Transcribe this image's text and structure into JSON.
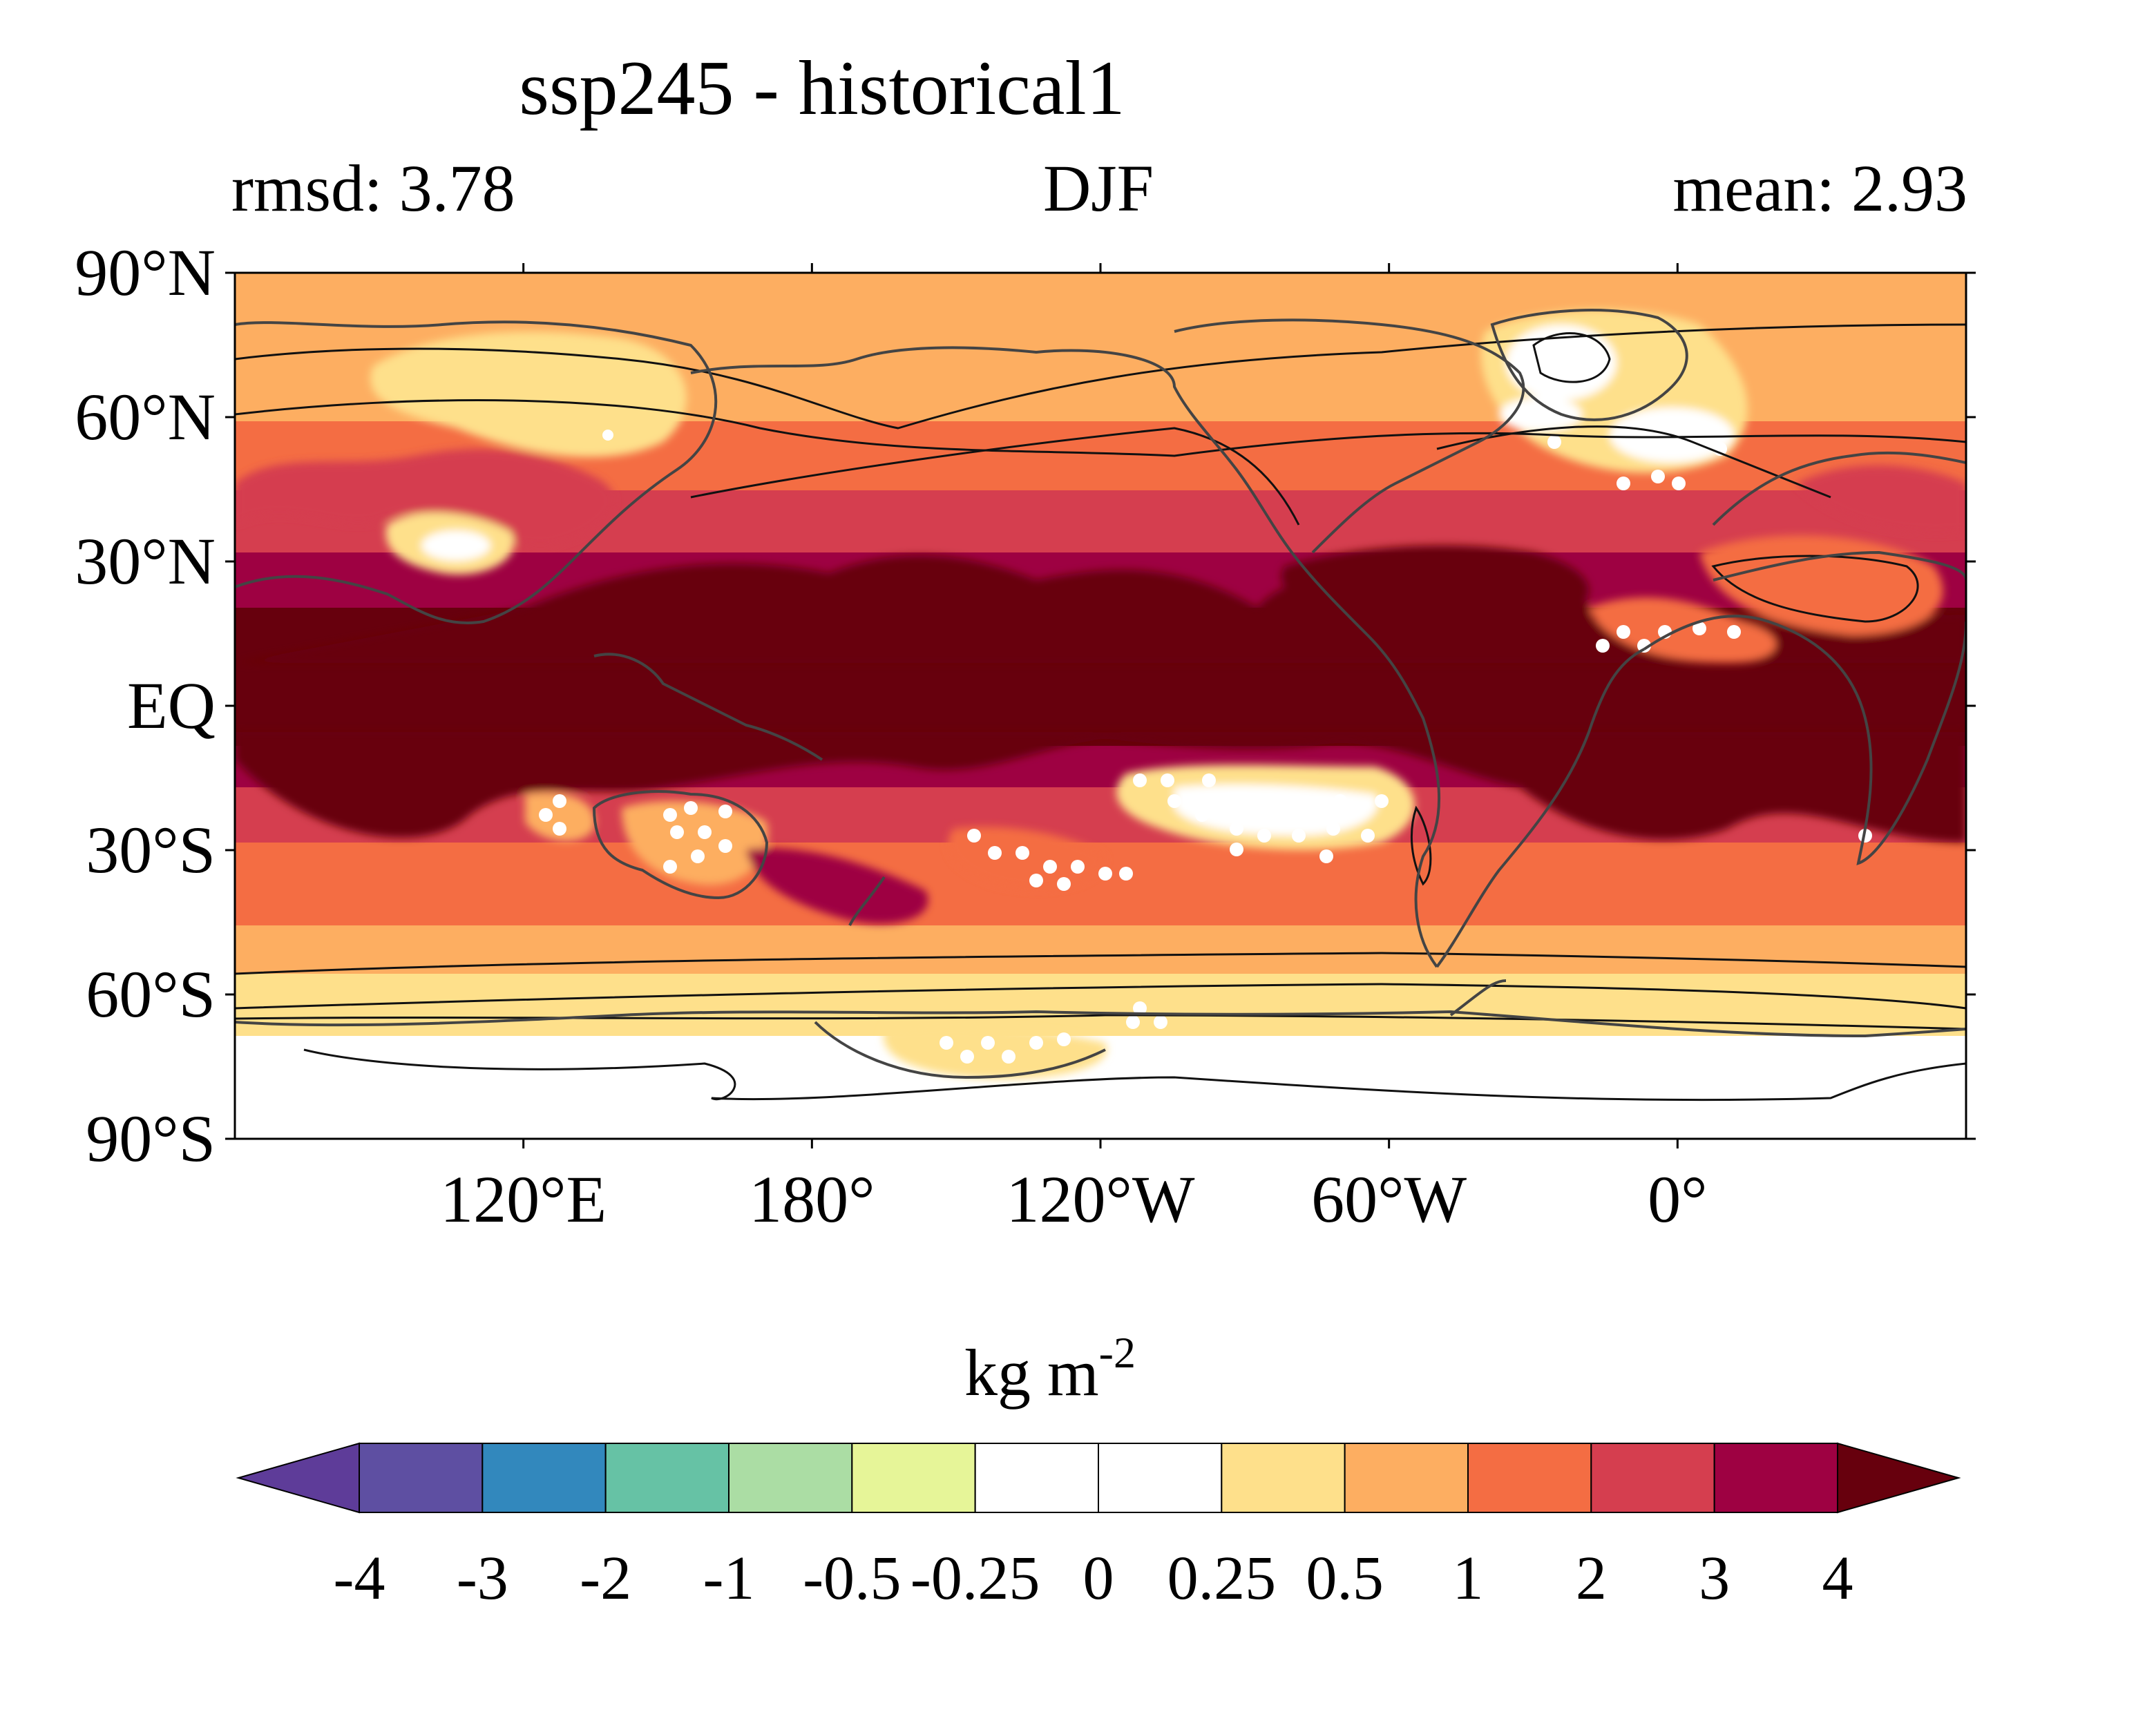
{
  "title": "ssp245 - historical1",
  "subtitle_left": "rmsd: 3.78",
  "subtitle_center": "DJF",
  "subtitle_right": "mean: 2.93",
  "map": {
    "lon_range": [
      60,
      420
    ],
    "lat_range": [
      -90,
      90
    ],
    "lat_ticks": [
      {
        "value": 90,
        "label": "90°N"
      },
      {
        "value": 60,
        "label": "60°N"
      },
      {
        "value": 30,
        "label": "30°N"
      },
      {
        "value": 0,
        "label": "EQ"
      },
      {
        "value": -30,
        "label": "30°S"
      },
      {
        "value": -60,
        "label": "60°S"
      },
      {
        "value": -90,
        "label": "90°S"
      }
    ],
    "lon_ticks": [
      {
        "value": 120,
        "label": "120°E"
      },
      {
        "value": 180,
        "label": "180°"
      },
      {
        "value": 240,
        "label": "120°W"
      },
      {
        "value": 300,
        "label": "60°W"
      },
      {
        "value": 360,
        "label": "0°"
      }
    ],
    "field_description_levels": "filled contours of change relative to colorbar levels",
    "stippling": "white dots mark regions of significance"
  },
  "colorbar": {
    "units_main": "kg m",
    "units_exp": "-2",
    "levels": [
      "-4",
      "-3",
      "-2",
      "-1",
      "-0.5",
      "-0.25",
      "0",
      "0.25",
      "0.5",
      "1",
      "2",
      "3",
      "4"
    ],
    "colors": [
      "#5e3c99",
      "#5e4fa2",
      "#3288bd",
      "#66c2a5",
      "#abdda4",
      "#e6f598",
      "#ffffff",
      "#ffffff",
      "#fee08b",
      "#fdae61",
      "#f46d43",
      "#d53e4f",
      "#9e0142",
      "#67000d"
    ]
  }
}
